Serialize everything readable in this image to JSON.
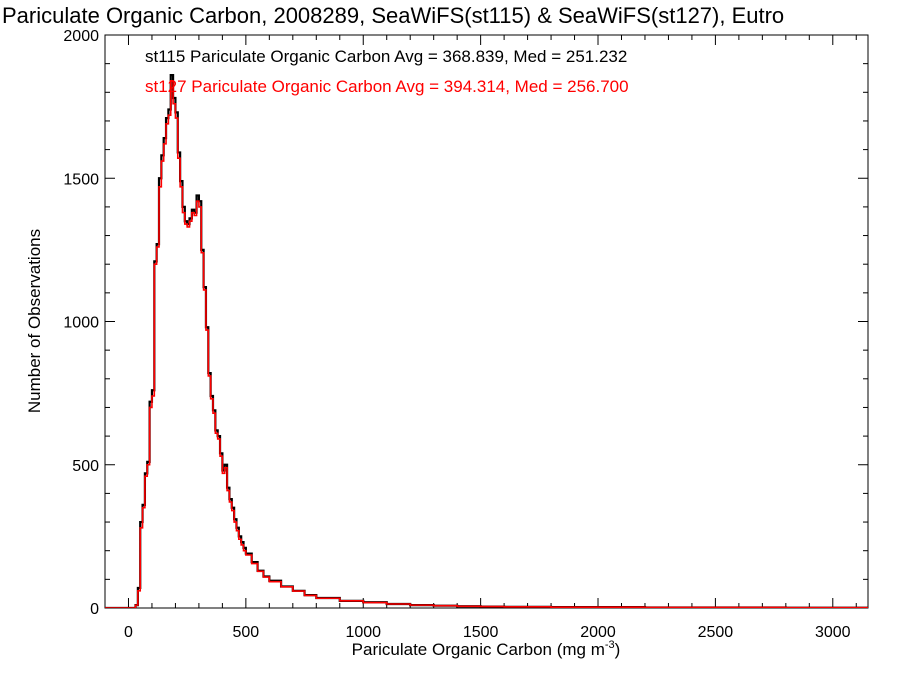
{
  "chart_data": {
    "type": "line",
    "step": true,
    "title": "Pariculate Organic Carbon, 2008289, SeaWiFS(st115) & SeaWiFS(st127), Eutro",
    "xlabel": "Pariculate Organic Carbon (mg m",
    "xlabel_sup": "-3",
    "xlabel_close": ")",
    "ylabel": "Number of Observations",
    "xlim": [
      -100,
      3150
    ],
    "ylim": [
      0,
      2000
    ],
    "x_ticks": [
      0,
      500,
      1000,
      1500,
      2000,
      2500,
      3000
    ],
    "x_tick_labels": [
      "0",
      "500",
      "1000",
      "1500",
      "2000",
      "2500",
      "3000"
    ],
    "y_ticks": [
      0,
      500,
      1000,
      1500,
      2000
    ],
    "y_tick_labels": [
      "0",
      "500",
      "1000",
      "1500",
      "2000"
    ],
    "grid": false,
    "series": [
      {
        "name": "st115",
        "color": "#000000",
        "stats_label": "st115 Pariculate Organic Carbon Avg = 368.839, Med = 251.232",
        "x": [
          -100,
          30,
          40,
          50,
          60,
          70,
          80,
          90,
          100,
          110,
          120,
          130,
          140,
          150,
          160,
          170,
          180,
          190,
          200,
          210,
          220,
          230,
          240,
          250,
          260,
          270,
          280,
          290,
          300,
          310,
          320,
          330,
          340,
          350,
          360,
          370,
          380,
          390,
          400,
          410,
          420,
          430,
          440,
          450,
          460,
          470,
          480,
          490,
          500,
          525,
          550,
          575,
          600,
          650,
          700,
          750,
          800,
          900,
          1000,
          1100,
          1200,
          1300,
          1400,
          1500,
          1600,
          1800,
          2000,
          2200,
          2500,
          2800,
          3150
        ],
        "values": [
          0,
          10,
          70,
          300,
          360,
          470,
          510,
          720,
          760,
          1210,
          1270,
          1500,
          1580,
          1640,
          1710,
          1740,
          1860,
          1780,
          1730,
          1590,
          1490,
          1400,
          1350,
          1340,
          1360,
          1390,
          1380,
          1440,
          1420,
          1250,
          1120,
          980,
          820,
          740,
          690,
          620,
          600,
          540,
          480,
          500,
          420,
          380,
          350,
          310,
          280,
          250,
          230,
          210,
          190,
          160,
          130,
          110,
          95,
          75,
          60,
          45,
          35,
          25,
          20,
          14,
          10,
          8,
          6,
          5,
          4,
          3,
          3,
          2,
          2,
          1,
          1
        ]
      },
      {
        "name": "st127",
        "color": "#ff0000",
        "stats_label": "st127 Pariculate Organic Carbon Avg = 394.314, Med = 256.700",
        "x": [
          -100,
          30,
          40,
          50,
          60,
          70,
          80,
          90,
          100,
          110,
          120,
          130,
          140,
          150,
          160,
          170,
          180,
          190,
          200,
          210,
          220,
          230,
          240,
          250,
          260,
          270,
          280,
          290,
          300,
          310,
          320,
          330,
          340,
          350,
          360,
          370,
          380,
          390,
          400,
          410,
          420,
          430,
          440,
          450,
          460,
          470,
          480,
          490,
          500,
          525,
          550,
          575,
          600,
          650,
          700,
          750,
          800,
          900,
          1000,
          1100,
          1200,
          1300,
          1400,
          1500,
          1600,
          1800,
          2000,
          2200,
          2500,
          2800,
          3150
        ],
        "values": [
          0,
          10,
          60,
          280,
          350,
          460,
          500,
          700,
          740,
          1200,
          1260,
          1470,
          1560,
          1620,
          1690,
          1720,
          1840,
          1760,
          1710,
          1570,
          1470,
          1380,
          1340,
          1330,
          1350,
          1380,
          1370,
          1420,
          1400,
          1240,
          1110,
          970,
          810,
          730,
          680,
          610,
          590,
          530,
          470,
          490,
          410,
          370,
          340,
          300,
          270,
          240,
          220,
          200,
          185,
          155,
          128,
          108,
          92,
          74,
          59,
          44,
          34,
          25,
          19,
          14,
          10,
          8,
          6,
          5,
          4,
          3,
          3,
          2,
          2,
          1,
          1
        ]
      }
    ]
  }
}
